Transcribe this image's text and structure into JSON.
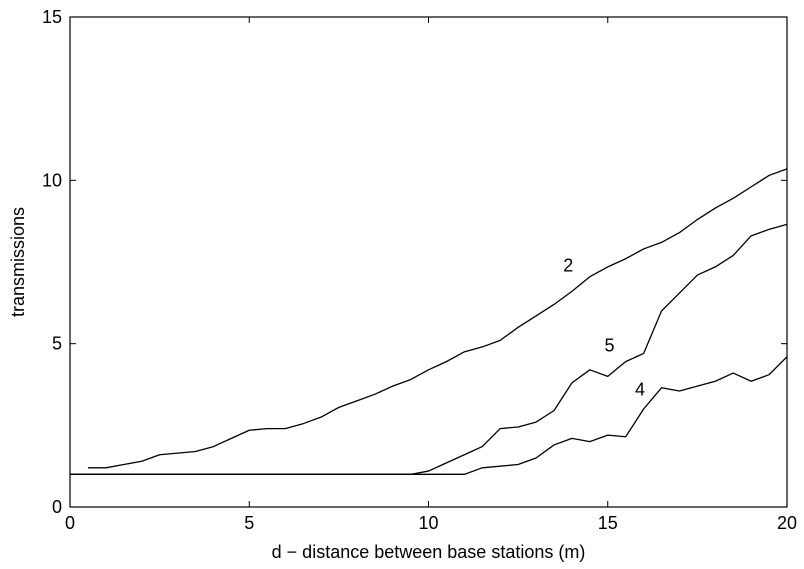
{
  "chart_data": {
    "type": "line",
    "title": "",
    "xlabel": "d − distance between base stations (m)",
    "ylabel": "transmissions",
    "xlim": [
      0,
      20
    ],
    "ylim": [
      0,
      15
    ],
    "xticks": [
      0,
      5,
      10,
      15,
      20
    ],
    "yticks": [
      0,
      5,
      10,
      15
    ],
    "xtick_labels": [
      "0",
      "5",
      "10",
      "15",
      "20"
    ],
    "ytick_labels": [
      "0",
      "5",
      "10",
      "15"
    ],
    "grid": false,
    "legend": "none",
    "series": [
      {
        "name": "2",
        "x": [
          0.5,
          1,
          1.5,
          2,
          2.5,
          3,
          3.5,
          4,
          4.5,
          5,
          5.5,
          6,
          6.5,
          7,
          7.5,
          8,
          8.5,
          9,
          9.5,
          10,
          10.5,
          11,
          11.5,
          12,
          12.5,
          13,
          13.5,
          14,
          14.5,
          15,
          15.5,
          16,
          16.5,
          17,
          17.5,
          18,
          18.5,
          19,
          19.5,
          20
        ],
        "y": [
          1.2,
          1.2,
          1.3,
          1.4,
          1.6,
          1.65,
          1.7,
          1.85,
          2.1,
          2.35,
          2.4,
          2.4,
          2.55,
          2.75,
          3.05,
          3.25,
          3.45,
          3.7,
          3.9,
          4.2,
          4.45,
          4.75,
          4.9,
          5.1,
          5.5,
          5.85,
          6.2,
          6.6,
          7.05,
          7.35,
          7.6,
          7.9,
          8.1,
          8.4,
          8.8,
          9.15,
          9.45,
          9.8,
          10.15,
          10.35
        ],
        "label_pos": [
          13.9,
          7.4
        ]
      },
      {
        "name": "5",
        "x": [
          0,
          9.5,
          10,
          10.5,
          11,
          11.5,
          12,
          12.5,
          13,
          13.5,
          14,
          14.5,
          15,
          15.5,
          16,
          16.5,
          17,
          17.5,
          18,
          18.5,
          19,
          19.5,
          20
        ],
        "y": [
          1.0,
          1.0,
          1.1,
          1.35,
          1.6,
          1.85,
          2.4,
          2.45,
          2.6,
          2.95,
          3.8,
          4.2,
          4.0,
          4.45,
          4.7,
          6.0,
          6.55,
          7.1,
          7.35,
          7.7,
          8.3,
          8.5,
          8.65
        ],
        "label_pos": [
          15.05,
          4.95
        ]
      },
      {
        "name": "4",
        "x": [
          0,
          11,
          11.5,
          12,
          12.5,
          13,
          13.5,
          14,
          14.5,
          15,
          15.5,
          16,
          16.5,
          17,
          17.5,
          18,
          18.5,
          19,
          19.5,
          20
        ],
        "y": [
          1.0,
          1.0,
          1.2,
          1.25,
          1.3,
          1.5,
          1.9,
          2.1,
          2.0,
          2.2,
          2.15,
          3.0,
          3.65,
          3.55,
          3.7,
          3.85,
          4.1,
          3.85,
          4.05,
          4.6
        ],
        "label_pos": [
          15.9,
          3.6
        ]
      }
    ]
  }
}
